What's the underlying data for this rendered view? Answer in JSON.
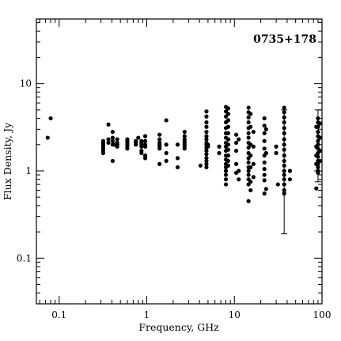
{
  "chart_data": {
    "type": "scatter",
    "title": "0735+178",
    "xlabel": "Frequency, GHz",
    "ylabel": "Flux Density, Jy",
    "xscale": "log",
    "yscale": "log",
    "xlim": [
      0.055,
      100
    ],
    "ylim": [
      0.03,
      55
    ],
    "x_ticks": [
      {
        "value": 0.1,
        "label": "0.1"
      },
      {
        "value": 1,
        "label": "1"
      },
      {
        "value": 10,
        "label": "10"
      },
      {
        "value": 100,
        "label": "100"
      }
    ],
    "y_ticks": [
      {
        "value": 0.1,
        "label": "0.1"
      },
      {
        "value": 1,
        "label": "1"
      },
      {
        "value": 10,
        "label": "10"
      }
    ],
    "title_position": "top-right",
    "grid": false,
    "colors": {
      "points": "#000000",
      "axes": "#000000"
    },
    "points": [
      [
        0.074,
        2.4
      ],
      [
        0.08,
        4.0
      ],
      [
        0.318,
        2.2
      ],
      [
        0.318,
        2.1
      ],
      [
        0.318,
        2.0
      ],
      [
        0.318,
        1.9
      ],
      [
        0.318,
        1.8
      ],
      [
        0.318,
        1.7
      ],
      [
        0.318,
        1.6
      ],
      [
        0.365,
        3.4
      ],
      [
        0.365,
        2.3
      ],
      [
        0.365,
        2.1
      ],
      [
        0.408,
        2.8
      ],
      [
        0.408,
        2.4
      ],
      [
        0.408,
        2.2
      ],
      [
        0.408,
        2.0
      ],
      [
        0.408,
        1.3
      ],
      [
        0.43,
        2.0
      ],
      [
        0.46,
        2.3
      ],
      [
        0.46,
        2.1
      ],
      [
        0.46,
        2.0
      ],
      [
        0.46,
        1.9
      ],
      [
        0.6,
        2.3
      ],
      [
        0.6,
        2.2
      ],
      [
        0.6,
        2.1
      ],
      [
        0.6,
        2.0
      ],
      [
        0.6,
        1.9
      ],
      [
        0.6,
        1.8
      ],
      [
        0.75,
        2.2
      ],
      [
        0.75,
        2.1
      ],
      [
        0.75,
        2.0
      ],
      [
        0.8,
        2.4
      ],
      [
        0.87,
        2.2
      ],
      [
        0.87,
        2.1
      ],
      [
        0.87,
        2.0
      ],
      [
        0.87,
        1.9
      ],
      [
        0.87,
        1.7
      ],
      [
        0.87,
        1.6
      ],
      [
        0.96,
        2.5
      ],
      [
        0.96,
        2.2
      ],
      [
        0.96,
        2.0
      ],
      [
        0.96,
        1.9
      ],
      [
        0.96,
        1.5
      ],
      [
        0.96,
        1.4
      ],
      [
        1.4,
        2.6
      ],
      [
        1.4,
        2.3
      ],
      [
        1.4,
        2.1
      ],
      [
        1.4,
        2.0
      ],
      [
        1.4,
        1.9
      ],
      [
        1.4,
        1.8
      ],
      [
        1.4,
        1.2
      ],
      [
        1.67,
        3.8
      ],
      [
        1.67,
        2.0
      ],
      [
        1.67,
        1.6
      ],
      [
        1.67,
        1.3
      ],
      [
        2.25,
        2.0
      ],
      [
        2.25,
        1.4
      ],
      [
        2.25,
        1.1
      ],
      [
        2.7,
        2.8
      ],
      [
        2.7,
        2.5
      ],
      [
        2.7,
        2.3
      ],
      [
        2.7,
        2.2
      ],
      [
        2.7,
        2.1
      ],
      [
        2.7,
        2.0
      ],
      [
        2.7,
        1.9
      ],
      [
        2.7,
        1.8
      ],
      [
        4.1,
        1.15
      ],
      [
        4.8,
        4.8
      ],
      [
        4.8,
        4.2
      ],
      [
        4.8,
        3.6
      ],
      [
        4.8,
        3.2
      ],
      [
        4.8,
        2.8
      ],
      [
        4.8,
        2.5
      ],
      [
        4.8,
        2.3
      ],
      [
        4.8,
        2.1
      ],
      [
        4.8,
        2.0
      ],
      [
        4.8,
        1.85
      ],
      [
        4.8,
        1.7
      ],
      [
        4.8,
        1.55
      ],
      [
        4.8,
        1.4
      ],
      [
        4.8,
        1.3
      ],
      [
        4.8,
        1.2
      ],
      [
        4.8,
        1.1
      ],
      [
        5.0,
        2.0
      ],
      [
        5.0,
        1.9
      ],
      [
        6.7,
        1.9
      ],
      [
        6.7,
        1.6
      ],
      [
        8.0,
        5.4
      ],
      [
        8.0,
        4.8
      ],
      [
        8.0,
        4.2
      ],
      [
        8.0,
        3.6
      ],
      [
        8.0,
        3.1
      ],
      [
        8.0,
        2.7
      ],
      [
        8.0,
        2.4
      ],
      [
        8.0,
        2.1
      ],
      [
        8.0,
        1.9
      ],
      [
        8.0,
        1.7
      ],
      [
        8.0,
        1.5
      ],
      [
        8.0,
        1.35
      ],
      [
        8.0,
        1.2
      ],
      [
        8.0,
        1.1
      ],
      [
        8.0,
        1.0
      ],
      [
        8.0,
        0.9
      ],
      [
        8.0,
        0.8
      ],
      [
        8.0,
        0.7
      ],
      [
        8.5,
        5.2
      ],
      [
        8.5,
        4.5
      ],
      [
        8.5,
        3.8
      ],
      [
        8.5,
        3.2
      ],
      [
        8.5,
        2.7
      ],
      [
        8.5,
        2.3
      ],
      [
        8.5,
        2.0
      ],
      [
        8.5,
        1.75
      ],
      [
        8.5,
        1.5
      ],
      [
        8.5,
        1.3
      ],
      [
        8.5,
        1.15
      ],
      [
        10.5,
        2.6
      ],
      [
        10.5,
        2.1
      ],
      [
        10.5,
        1.7
      ],
      [
        10.5,
        1.2
      ],
      [
        10.5,
        0.95
      ],
      [
        11.2,
        2.3
      ],
      [
        11.2,
        1.0
      ],
      [
        11.2,
        0.8
      ],
      [
        14.5,
        5.3
      ],
      [
        14.5,
        4.7
      ],
      [
        14.5,
        4.1
      ],
      [
        14.5,
        3.6
      ],
      [
        14.5,
        3.1
      ],
      [
        14.5,
        2.7
      ],
      [
        14.5,
        2.4
      ],
      [
        14.5,
        2.1
      ],
      [
        14.5,
        1.85
      ],
      [
        14.5,
        1.6
      ],
      [
        14.5,
        1.4
      ],
      [
        14.5,
        1.25
      ],
      [
        14.5,
        1.1
      ],
      [
        14.5,
        1.0
      ],
      [
        14.5,
        0.9
      ],
      [
        14.5,
        0.8
      ],
      [
        14.5,
        0.7
      ],
      [
        14.5,
        0.45
      ],
      [
        15.3,
        4.5
      ],
      [
        15.3,
        3.2
      ],
      [
        15.3,
        2.0
      ],
      [
        15.3,
        1.5
      ],
      [
        15.3,
        1.1
      ],
      [
        15.3,
        0.75
      ],
      [
        15.3,
        0.6
      ],
      [
        16.5,
        2.8
      ],
      [
        16.5,
        1.9
      ],
      [
        16.5,
        1.2
      ],
      [
        16.5,
        0.85
      ],
      [
        22.0,
        4.0
      ],
      [
        22.0,
        3.3
      ],
      [
        22.0,
        2.7
      ],
      [
        22.0,
        2.2
      ],
      [
        22.0,
        1.8
      ],
      [
        22.0,
        1.5
      ],
      [
        22.0,
        1.25
      ],
      [
        22.0,
        1.05
      ],
      [
        22.0,
        0.9
      ],
      [
        22.0,
        0.78
      ],
      [
        22.0,
        0.55
      ],
      [
        23.0,
        3.0
      ],
      [
        23.0,
        1.6
      ],
      [
        23.0,
        0.62
      ],
      [
        30.0,
        1.9
      ],
      [
        30.0,
        1.6
      ],
      [
        31.4,
        0.7
      ],
      [
        37.0,
        5.3
      ],
      [
        37.0,
        4.7
      ],
      [
        37.0,
        4.1
      ],
      [
        37.0,
        3.6
      ],
      [
        37.0,
        3.1
      ],
      [
        37.0,
        2.7
      ],
      [
        37.0,
        2.3
      ],
      [
        37.0,
        2.0
      ],
      [
        37.0,
        1.75
      ],
      [
        37.0,
        1.5
      ],
      [
        37.0,
        1.3
      ],
      [
        37.0,
        1.15
      ],
      [
        37.0,
        1.0
      ],
      [
        37.0,
        0.9
      ],
      [
        37.0,
        0.8
      ],
      [
        37.0,
        0.7
      ],
      [
        37.0,
        0.6
      ],
      [
        37.0,
        0.55
      ],
      [
        43.0,
        1.0
      ],
      [
        43.0,
        0.8
      ],
      [
        86.0,
        3.2
      ],
      [
        86.0,
        1.9
      ],
      [
        86.0,
        1.5
      ],
      [
        86.0,
        1.2
      ],
      [
        86.0,
        0.63
      ],
      [
        90.0,
        4.0
      ],
      [
        90.0,
        3.6
      ],
      [
        90.0,
        3.2
      ],
      [
        90.0,
        2.8
      ],
      [
        90.0,
        2.5
      ],
      [
        90.0,
        2.2
      ],
      [
        90.0,
        2.0
      ],
      [
        90.0,
        1.8
      ],
      [
        90.0,
        1.6
      ],
      [
        90.0,
        1.45
      ],
      [
        90.0,
        1.3
      ],
      [
        90.0,
        1.2
      ],
      [
        90.0,
        1.1
      ],
      [
        90.0,
        1.0
      ],
      [
        90.0,
        0.95
      ],
      [
        95.0,
        3.5
      ],
      [
        95.0,
        2.4
      ],
      [
        95.0,
        1.7
      ],
      [
        95.0,
        1.3
      ]
    ],
    "error_bars": [
      {
        "x": 37.0,
        "y": 1.0,
        "ylow": 0.19,
        "yhigh": 5.0
      },
      {
        "x": 90.0,
        "y": 1.4,
        "ylow": 0.75,
        "yhigh": 5.0
      }
    ]
  }
}
